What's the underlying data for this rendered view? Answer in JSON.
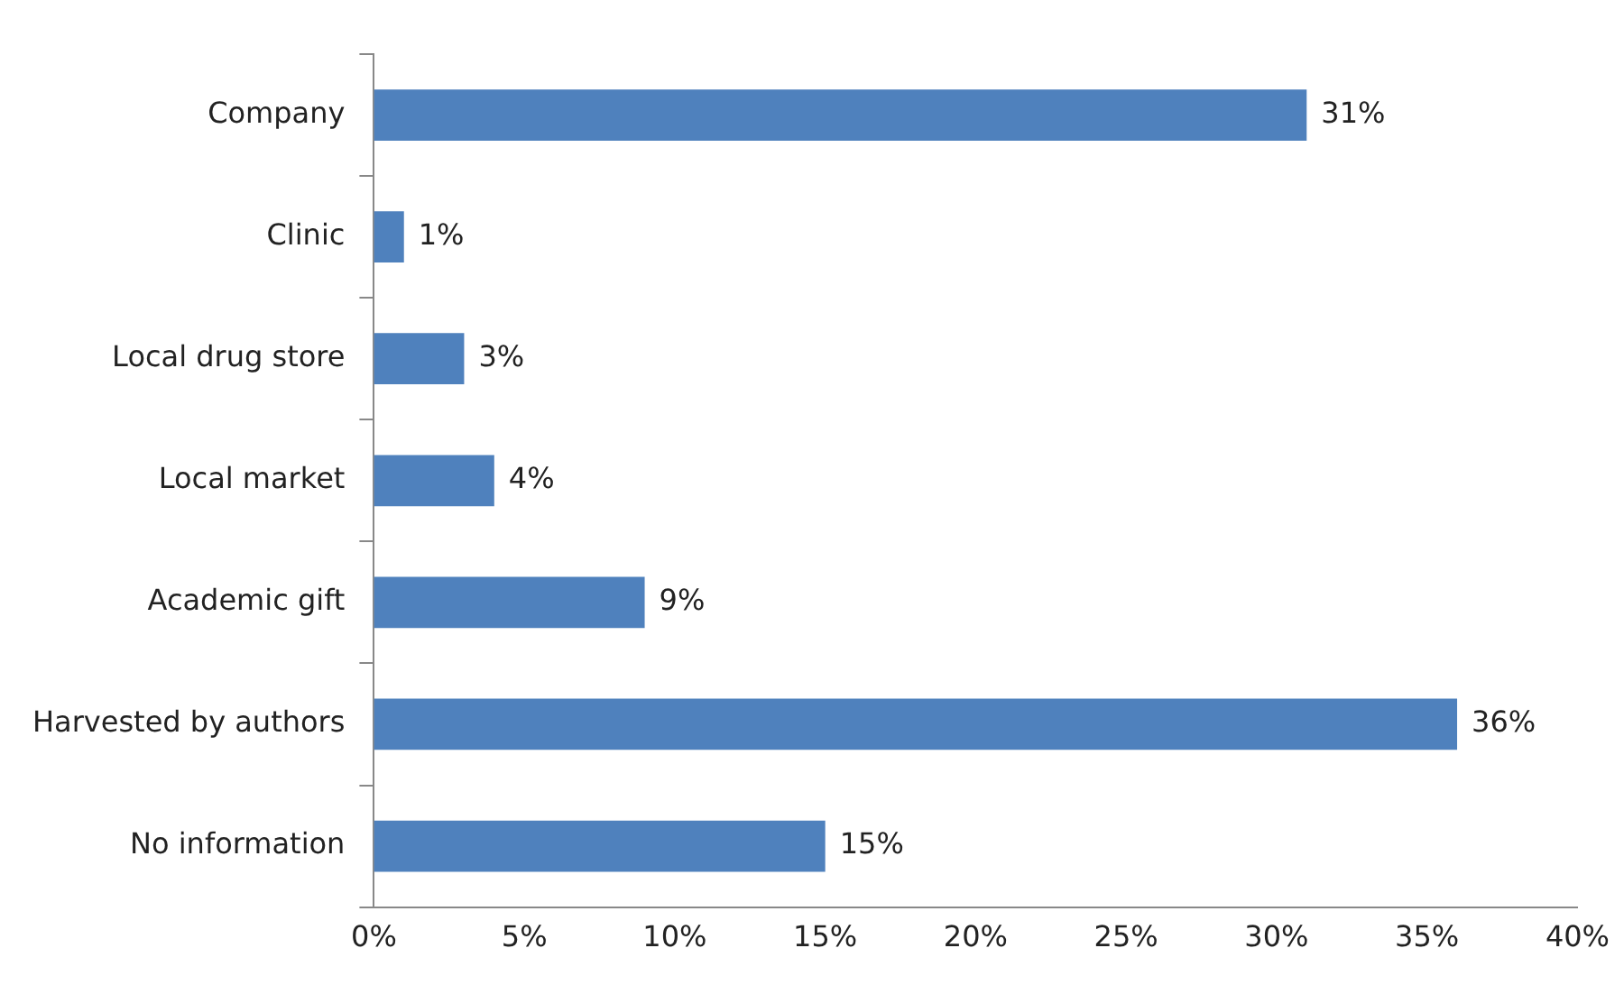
{
  "chart_data": {
    "type": "bar",
    "orientation": "horizontal",
    "categories": [
      "Company",
      "Clinic",
      "Local drug store",
      "Local market",
      "Academic gift",
      "Harvested by authors",
      "No information"
    ],
    "values": [
      31,
      1,
      3,
      4,
      9,
      36,
      15
    ],
    "color": "#4f81bd",
    "xlim": [
      0,
      40
    ],
    "xticks": [
      {
        "value": 0,
        "label": "0%"
      },
      {
        "value": 5,
        "label": "5%"
      },
      {
        "value": 10,
        "label": "10%"
      },
      {
        "value": 15,
        "label": "15%"
      },
      {
        "value": 20,
        "label": "20%"
      },
      {
        "value": 25,
        "label": "25%"
      },
      {
        "value": 30,
        "label": "30%"
      },
      {
        "value": 35,
        "label": "35%"
      },
      {
        "value": 40,
        "label": "40%"
      }
    ],
    "value_labels": [
      "31%",
      "1%",
      "3%",
      "4%",
      "9%",
      "36%",
      "15%"
    ],
    "grid": false,
    "legend": false
  }
}
